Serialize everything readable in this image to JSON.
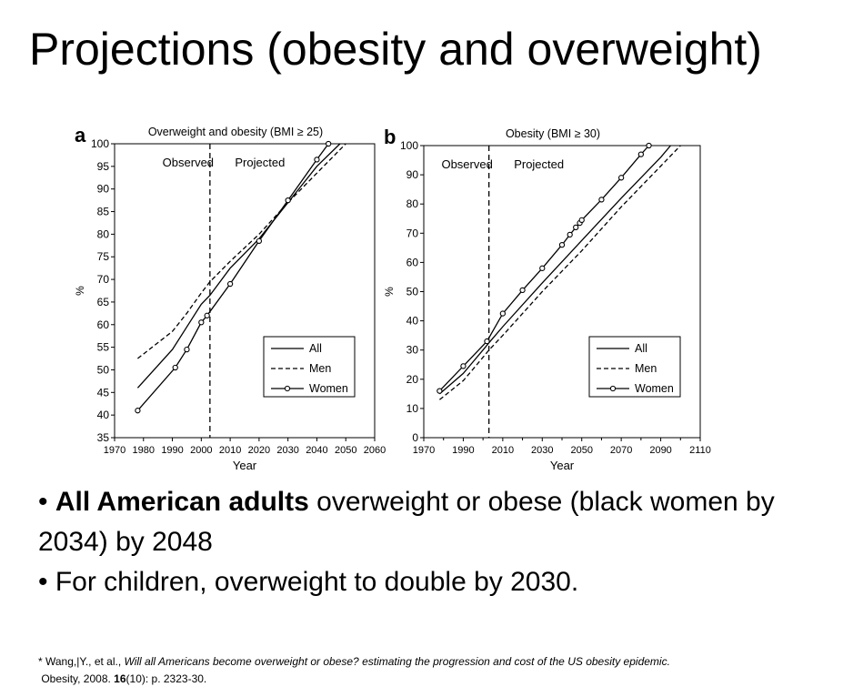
{
  "slide": {
    "title": "Projections (obesity and overweight)",
    "bullets": [
      {
        "bold": "All American adults",
        "text": " overweight or obese (black women by 2034) by 2048",
        "prefix": "• "
      },
      {
        "bold": "",
        "text": "For children, overweight to double by 2030.",
        "prefix": "• "
      }
    ],
    "citation": {
      "line1_prefix": "* Wang,|Y., et al., ",
      "line1_italic": "Will all Americans become overweight or obese? estimating the progression and cost of the US obesity epidemic.",
      "line2_prefix": "Obesity, 2008. ",
      "line2_bold": "16",
      "line2_suffix": "(10): p. 2323-30."
    }
  },
  "chart_data": [
    {
      "type": "line",
      "panel_label": "a",
      "title": "Overweight and obesity (BMI ≥ 25)",
      "xlabel": "Year",
      "ylabel": "%",
      "xlim": [
        1970,
        2060
      ],
      "ylim": [
        35,
        100
      ],
      "xticks": [
        1970,
        1980,
        1990,
        2000,
        2010,
        2020,
        2030,
        2040,
        2050,
        2060
      ],
      "yticks": [
        35,
        40,
        45,
        50,
        55,
        60,
        65,
        70,
        75,
        80,
        85,
        90,
        95,
        100
      ],
      "divider_x": 2003,
      "region_labels": {
        "left": "Observed",
        "right": "Projected"
      },
      "legend_position": "bottom-right",
      "series": [
        {
          "name": "All",
          "style": "solid",
          "markers": false,
          "points": [
            [
              1978,
              46
            ],
            [
              1990,
              54.5
            ],
            [
              1995,
              59.5
            ],
            [
              2000,
              64.5
            ],
            [
              2003,
              66.5
            ],
            [
              2010,
              72.5
            ],
            [
              2020,
              79
            ],
            [
              2030,
              87
            ],
            [
              2040,
              95
            ],
            [
              2048,
              100
            ]
          ]
        },
        {
          "name": "Men",
          "style": "dashed",
          "markers": false,
          "points": [
            [
              1978,
              52.5
            ],
            [
              1990,
              58.5
            ],
            [
              1995,
              62.5
            ],
            [
              2000,
              67
            ],
            [
              2003,
              69.5
            ],
            [
              2010,
              74
            ],
            [
              2020,
              80
            ],
            [
              2030,
              87
            ],
            [
              2040,
              93.5
            ],
            [
              2050,
              100
            ]
          ]
        },
        {
          "name": "Women",
          "style": "solid",
          "markers": true,
          "points": [
            [
              1978,
              41
            ],
            [
              1991,
              50.5
            ],
            [
              1995,
              54.5
            ],
            [
              2000,
              60.5
            ],
            [
              2002,
              62
            ],
            [
              2010,
              69
            ],
            [
              2020,
              78.5
            ],
            [
              2030,
              87.5
            ],
            [
              2040,
              96.5
            ],
            [
              2044,
              100
            ]
          ]
        }
      ]
    },
    {
      "type": "line",
      "panel_label": "b",
      "title": "Obesity (BMI ≥ 30)",
      "xlabel": "Year",
      "ylabel": "%",
      "xlim": [
        1970,
        2110
      ],
      "ylim": [
        0,
        100
      ],
      "xticks": [
        1970,
        1990,
        2010,
        2030,
        2050,
        2070,
        2090,
        2110
      ],
      "minor_xticks": [
        1980,
        2000,
        2020,
        2040,
        2060,
        2080,
        2100
      ],
      "yticks": [
        0,
        10,
        20,
        30,
        40,
        50,
        60,
        70,
        80,
        90,
        100
      ],
      "divider_x": 2003,
      "region_labels": {
        "left": "Observed",
        "right": "Projected"
      },
      "legend_position": "bottom-right",
      "series": [
        {
          "name": "All",
          "style": "solid",
          "markers": false,
          "points": [
            [
              1978,
              15
            ],
            [
              1990,
              22
            ],
            [
              1995,
              26
            ],
            [
              2000,
              30
            ],
            [
              2003,
              32.5
            ],
            [
              2010,
              38
            ],
            [
              2030,
              53
            ],
            [
              2050,
              67.5
            ],
            [
              2070,
              82
            ],
            [
              2090,
              96
            ],
            [
              2095,
              100
            ]
          ]
        },
        {
          "name": "Men",
          "style": "dashed",
          "markers": false,
          "points": [
            [
              1978,
              13
            ],
            [
              1990,
              19.5
            ],
            [
              1995,
              23.5
            ],
            [
              2000,
              27.5
            ],
            [
              2003,
              30
            ],
            [
              2010,
              35
            ],
            [
              2030,
              50
            ],
            [
              2050,
              64
            ],
            [
              2070,
              79
            ],
            [
              2090,
              93
            ],
            [
              2100,
              100
            ]
          ]
        },
        {
          "name": "Women",
          "style": "solid",
          "markers": true,
          "points": [
            [
              1978,
              16
            ],
            [
              1990,
              24.5
            ],
            [
              2002,
              33
            ],
            [
              2010,
              42.5
            ],
            [
              2020,
              50.5
            ],
            [
              2030,
              58
            ],
            [
              2040,
              66
            ],
            [
              2044,
              69.5
            ],
            [
              2047,
              72
            ],
            [
              2049,
              73.5
            ],
            [
              2050,
              74.5
            ],
            [
              2060,
              81.5
            ],
            [
              2070,
              89
            ],
            [
              2080,
              97
            ],
            [
              2084,
              100
            ]
          ]
        }
      ]
    }
  ]
}
